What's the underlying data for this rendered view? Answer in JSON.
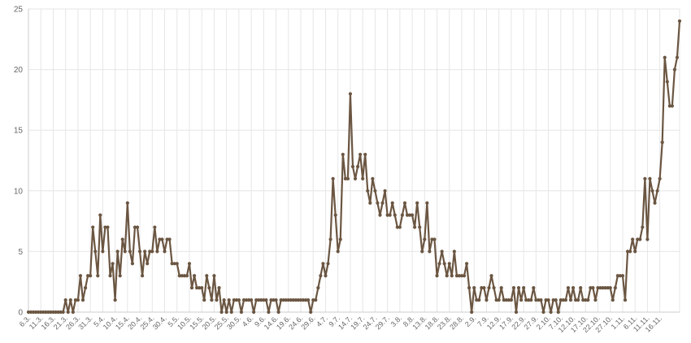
{
  "chart_data": {
    "type": "line",
    "title": "",
    "xlabel": "",
    "ylabel": "",
    "ylim": [
      0,
      25
    ],
    "y_ticks": [
      0,
      5,
      10,
      15,
      20,
      25
    ],
    "grid": true,
    "legend": "none",
    "line_color": "#6b5642",
    "start_date": "2020-03-06",
    "x_tick_labels": [
      "6.3.",
      "11.3.",
      "16.3.",
      "21.3.",
      "26.3.",
      "31.3.",
      "5.4.",
      "10.4.",
      "15.4.",
      "20.4.",
      "25.4.",
      "30.4.",
      "5.5.",
      "10.5.",
      "15.5.",
      "20.5.",
      "25.5.",
      "30.5.",
      "4.6.",
      "9.6.",
      "14.6.",
      "19.6.",
      "24.6.",
      "29.6.",
      "4.7.",
      "9.7.",
      "14.7.",
      "19.7.",
      "24.7.",
      "29.7.",
      "3.8.",
      "8.8.",
      "13.8.",
      "18.8.",
      "23.8.",
      "28.8.",
      "2.9.",
      "7.9.",
      "12.9.",
      "17.9.",
      "22.9.",
      "27.9.",
      "2.10.",
      "7.10.",
      "12.10.",
      "17.10.",
      "22.10.",
      "27.10.",
      "1.11.",
      "6.11.",
      "11.11.",
      "16.11."
    ],
    "series": [
      {
        "name": "",
        "values": [
          0,
          0,
          0,
          0,
          0,
          0,
          0,
          0,
          0,
          0,
          0,
          0,
          0,
          0,
          0,
          1,
          0,
          1,
          0,
          1,
          1,
          3,
          1,
          2,
          3,
          3,
          7,
          5,
          3,
          8,
          5,
          7,
          7,
          3,
          4,
          1,
          5,
          3,
          6,
          5,
          9,
          5,
          4,
          7,
          7,
          5,
          3,
          5,
          4,
          5,
          5,
          7,
          5,
          6,
          6,
          5,
          6,
          6,
          4,
          4,
          4,
          3,
          3,
          3,
          3,
          4,
          2,
          3,
          2,
          2,
          2,
          1,
          3,
          2,
          1,
          3,
          1,
          2,
          0,
          1,
          0,
          1,
          0,
          1,
          1,
          1,
          0,
          1,
          1,
          1,
          1,
          0,
          1,
          1,
          1,
          1,
          1,
          0,
          1,
          1,
          1,
          0,
          1,
          1,
          1,
          1,
          1,
          1,
          1,
          1,
          1,
          1,
          1,
          1,
          0,
          1,
          1,
          2,
          3,
          4,
          3,
          4,
          6,
          11,
          8,
          5,
          6,
          13,
          11,
          11,
          18,
          12,
          11,
          12,
          13,
          11,
          13,
          10,
          9,
          11,
          10,
          9,
          8,
          9,
          10,
          8,
          8,
          9,
          8,
          7,
          7,
          8,
          9,
          8,
          8,
          8,
          7,
          9,
          7,
          5,
          6,
          9,
          5,
          6,
          6,
          3,
          4,
          5,
          4,
          3,
          4,
          3,
          5,
          3,
          3,
          3,
          3,
          4,
          2,
          0,
          2,
          1,
          1,
          2,
          2,
          1,
          2,
          3,
          2,
          1,
          1,
          2,
          1,
          1,
          1,
          1,
          2,
          0,
          2,
          1,
          2,
          1,
          1,
          1,
          2,
          1,
          1,
          1,
          0,
          1,
          1,
          0,
          1,
          1,
          0,
          1,
          1,
          1,
          2,
          1,
          2,
          1,
          1,
          2,
          1,
          1,
          1,
          2,
          2,
          1,
          2,
          2,
          2,
          2,
          2,
          2,
          1,
          2,
          3,
          3,
          3,
          1,
          5,
          5,
          6,
          5,
          6,
          6,
          7,
          11,
          6,
          11,
          10,
          9,
          10,
          11,
          14,
          21,
          19,
          17,
          17,
          20,
          21,
          24
        ]
      }
    ]
  }
}
